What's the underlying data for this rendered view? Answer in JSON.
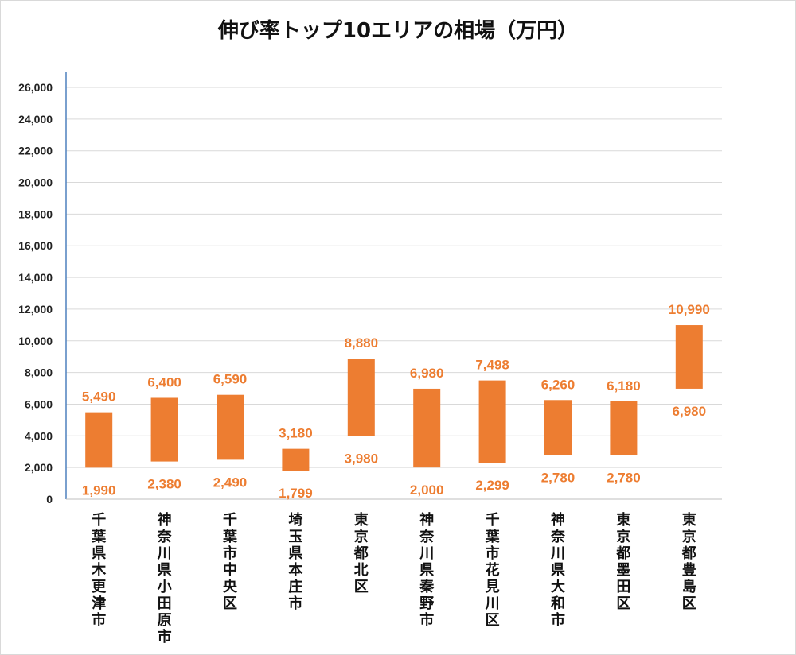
{
  "colors": {
    "bar": "#ed7d31",
    "grid": "#d9d9d9",
    "axis": "#4f81bd"
  },
  "chart_data": {
    "type": "bar",
    "subtype": "floating-range",
    "title": "伸び率トップ10エリアの相場（万円）",
    "xlabel": "",
    "ylabel": "",
    "ylim": [
      0,
      26000
    ],
    "yticks": [
      0,
      2000,
      4000,
      6000,
      8000,
      10000,
      12000,
      14000,
      16000,
      18000,
      20000,
      22000,
      24000,
      26000
    ],
    "ytick_labels": [
      "0",
      "2,000",
      "4,000",
      "6,000",
      "8,000",
      "10,000",
      "12,000",
      "14,000",
      "16,000",
      "18,000",
      "20,000",
      "22,000",
      "24,000",
      "26,000"
    ],
    "grid": true,
    "legend": "none",
    "categories": [
      "千葉県木更津市",
      "神奈川県小田原市",
      "千葉市中央区",
      "埼玉県本庄市",
      "東京都北区",
      "神奈川県秦野市",
      "千葉市花見川区",
      "神奈川県大和市",
      "東京都墨田区",
      "東京都豊島区"
    ],
    "low": [
      1990,
      2380,
      2490,
      1799,
      3980,
      2000,
      2299,
      2780,
      2780,
      6980
    ],
    "high": [
      5490,
      6400,
      6590,
      3180,
      8880,
      6980,
      7498,
      6260,
      6180,
      10990
    ],
    "low_labels": [
      "1,990",
      "2,380",
      "2,490",
      "1,799",
      "3,980",
      "2,000",
      "2,299",
      "2,780",
      "2,780",
      "6,980"
    ],
    "high_labels": [
      "5,490",
      "6,400",
      "6,590",
      "3,180",
      "8,880",
      "6,980",
      "7,498",
      "6,260",
      "6,180",
      "10,990"
    ]
  }
}
